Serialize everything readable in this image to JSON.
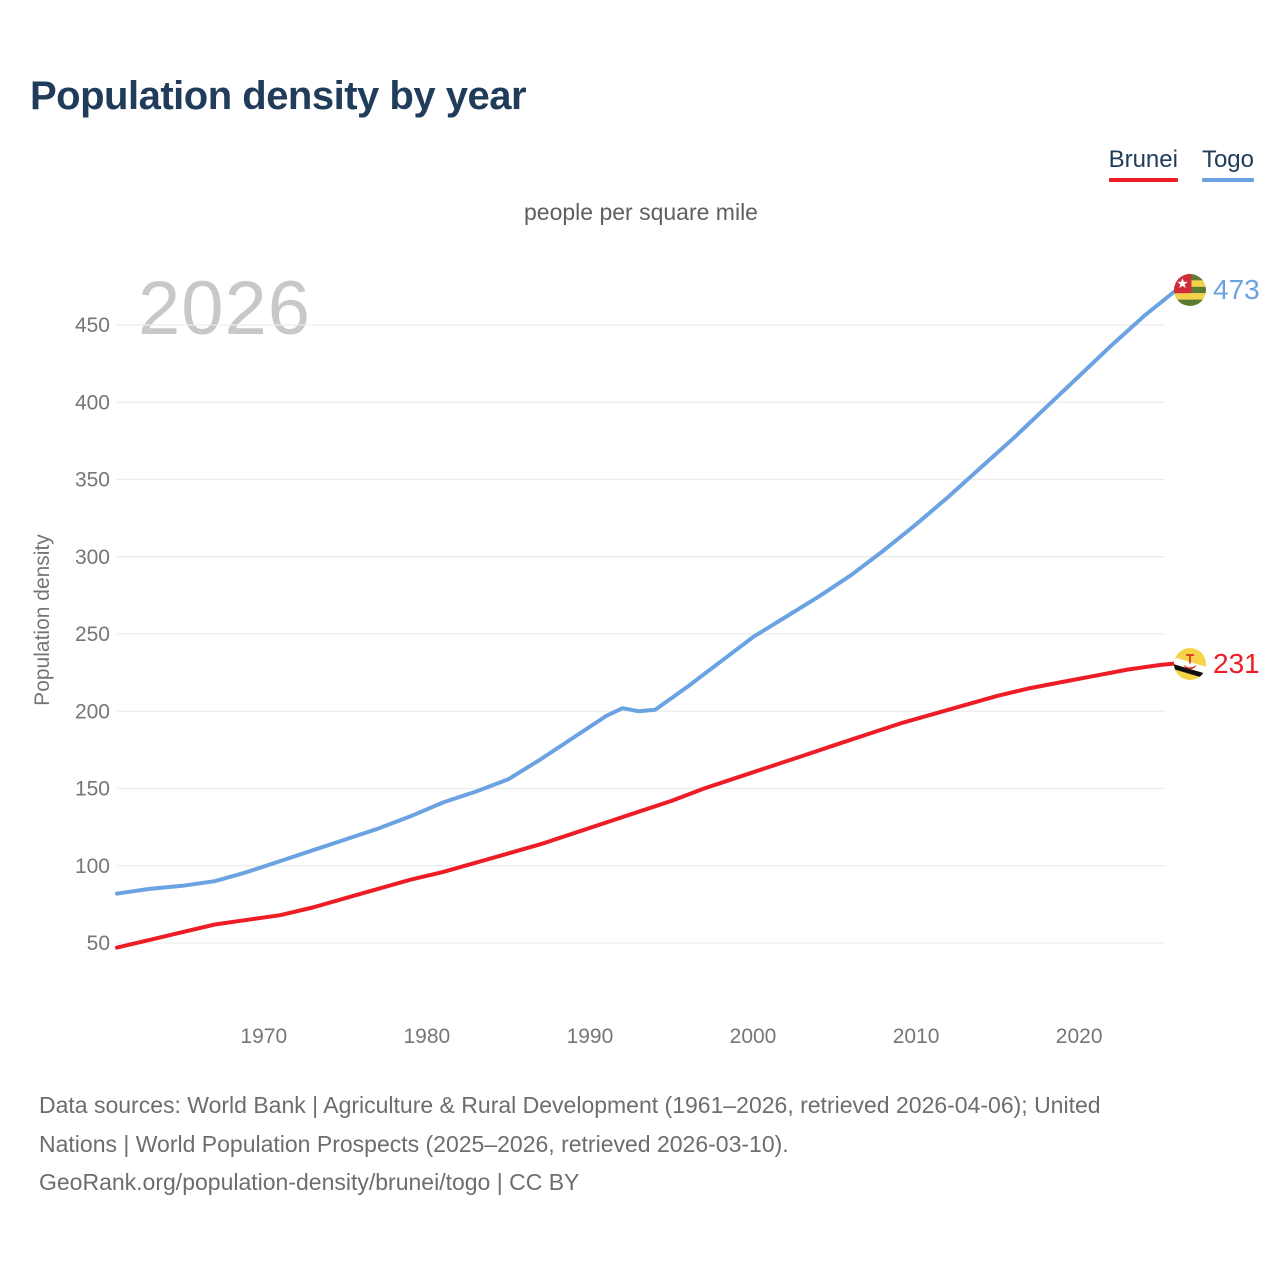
{
  "header": {
    "title": "Population density by year"
  },
  "legend": {
    "items": [
      {
        "label": "Brunei",
        "color": "#ee1c24"
      },
      {
        "label": "Togo",
        "color": "#6ba3e2"
      }
    ]
  },
  "chart_data": {
    "type": "line",
    "title": "Population density by year",
    "unit_label": "people per square mile",
    "watermark_year": "2026",
    "ylabel": "Population density",
    "xlabel": "",
    "x_range": [
      1961,
      2026
    ],
    "ylim": [
      40,
      490
    ],
    "y_ticks": [
      50,
      100,
      150,
      200,
      250,
      300,
      350,
      400,
      450
    ],
    "x_ticks": [
      1970,
      1980,
      1990,
      2000,
      2010,
      2020
    ],
    "grid": "horizontal",
    "legend_position": "top-right",
    "series": [
      {
        "name": "Brunei",
        "color": "#ee1c24",
        "end_value": 231,
        "flag_icon": "brunei-flag-icon",
        "x": [
          1961,
          1963,
          1965,
          1967,
          1969,
          1971,
          1973,
          1975,
          1977,
          1979,
          1981,
          1983,
          1985,
          1987,
          1989,
          1991,
          1993,
          1995,
          1997,
          1999,
          2001,
          2003,
          2005,
          2007,
          2009,
          2011,
          2013,
          2015,
          2017,
          2019,
          2021,
          2023,
          2025,
          2026
        ],
        "values": [
          47,
          52,
          57,
          62,
          65,
          68,
          73,
          79,
          85,
          91,
          96,
          102,
          108,
          114,
          121,
          128,
          135,
          142,
          150,
          157,
          164,
          171,
          178,
          185,
          192,
          198,
          204,
          210,
          215,
          219,
          223,
          227,
          230,
          231
        ]
      },
      {
        "name": "Togo",
        "color": "#6ba3e2",
        "end_value": 473,
        "flag_icon": "togo-flag-icon",
        "x": [
          1961,
          1963,
          1965,
          1967,
          1969,
          1971,
          1973,
          1975,
          1977,
          1979,
          1981,
          1983,
          1985,
          1987,
          1989,
          1991,
          1992,
          1993,
          1994,
          1996,
          1998,
          2000,
          2002,
          2004,
          2006,
          2008,
          2010,
          2012,
          2014,
          2016,
          2018,
          2020,
          2022,
          2024,
          2026
        ],
        "values": [
          82,
          85,
          87,
          90,
          96,
          103,
          110,
          117,
          124,
          132,
          141,
          148,
          156,
          169,
          183,
          197,
          202,
          200,
          201,
          216,
          232,
          248,
          261,
          274,
          288,
          304,
          321,
          339,
          358,
          377,
          397,
          417,
          437,
          456,
          473
        ]
      }
    ]
  },
  "footer": {
    "lines": [
      "Data sources: World Bank | Agriculture & Rural Development (1961–2026, retrieved 2026-04-06); United",
      "Nations | World Population Prospects (2025–2026, retrieved 2026-03-10).",
      "GeoRank.org/population-density/brunei/togo | CC BY"
    ]
  }
}
